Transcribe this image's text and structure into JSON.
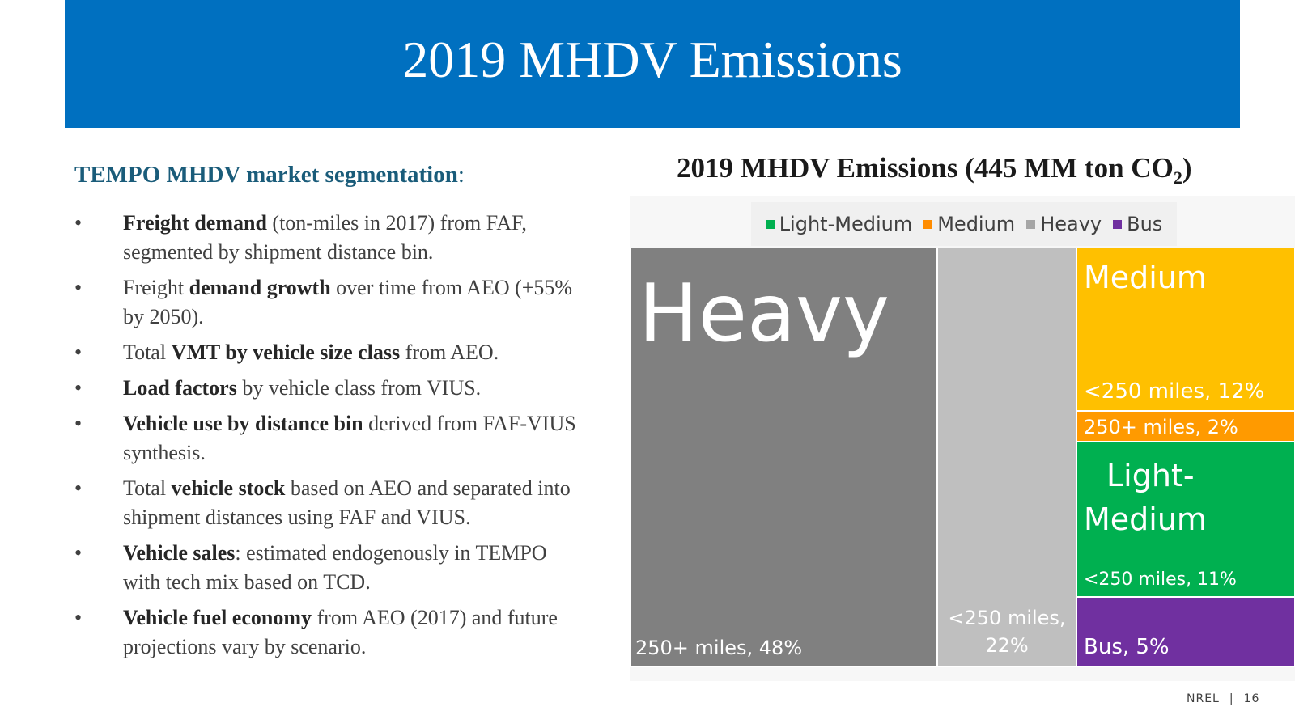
{
  "slide": {
    "title": "2019 MHDV Emissions",
    "subhead_bold": "TEMPO MHDV market segmentation",
    "subhead_rest": ":",
    "bullet_glyph": "•",
    "footer_org": "NREL",
    "footer_sep": "|",
    "page_number": "16"
  },
  "bullets": [
    {
      "b1": "Freight demand",
      "t1": " (ton-miles in 2017) from FAF, segmented by shipment distance bin.",
      "b2": "",
      "t2": ""
    },
    {
      "b1": "",
      "t1": "Freight ",
      "b2": "demand growth",
      "t2": " over time from AEO (+55% by 2050)."
    },
    {
      "b1": "",
      "t1": "Total ",
      "b2": "VMT by vehicle size class",
      "t2": " from AEO."
    },
    {
      "b1": "Load factors",
      "t1": " by vehicle class from VIUS.",
      "b2": "",
      "t2": ""
    },
    {
      "b1": "Vehicle use by distance bin",
      "t1": " derived from FAF-VIUS synthesis.",
      "b2": "",
      "t2": ""
    },
    {
      "b1": "",
      "t1": "Total ",
      "b2": "vehicle stock",
      "t2": " based on AEO and separated into shipment distances using FAF and VIUS."
    },
    {
      "b1": "Vehicle sales",
      "t1": ": estimated endogenously in TEMPO with tech mix based on TCD.",
      "b2": "",
      "t2": ""
    },
    {
      "b1": "Vehicle fuel economy",
      "t1": " from AEO (2017) and future projections vary by scenario.",
      "b2": "",
      "t2": ""
    }
  ],
  "chart_data": {
    "type": "treemap",
    "title_main": "2019 MHDV Emissions (445 MM ton CO",
    "title_sub": "2",
    "title_close": ")",
    "total": 445,
    "unit": "MM ton CO2",
    "legend": [
      {
        "name": "Light-Medium",
        "color": "#00b050"
      },
      {
        "name": "Medium",
        "color": "#ff8c00"
      },
      {
        "name": "Heavy",
        "color": "#a6a6a6"
      },
      {
        "name": "Bus",
        "color": "#7030a0"
      }
    ],
    "tiles": [
      {
        "id": "heavy-250plus",
        "group": "Heavy",
        "share": 48,
        "group_label": "Heavy",
        "label": "250+ miles, 48%",
        "label_lines": [],
        "color": "#808080"
      },
      {
        "id": "heavy-lt250",
        "group": "Heavy",
        "share": 22,
        "group_label": "",
        "label": "",
        "label_lines": [
          "<250 miles,",
          "22%"
        ],
        "color": "#bfbfbf"
      },
      {
        "id": "medium-lt250",
        "group": "Medium",
        "share": 12,
        "group_label": "Medium",
        "label": "<250 miles, 12%",
        "label_lines": [],
        "color": "#ffc000"
      },
      {
        "id": "medium-250plus",
        "group": "Medium",
        "share": 2,
        "group_label": "",
        "label": "250+ miles, 2%",
        "label_lines": [],
        "color": "#ff9a00"
      },
      {
        "id": "lightmedium-lt250",
        "group": "Light-Medium",
        "share": 11,
        "group_label": "",
        "group_label_lines": [
          "Light-",
          "Medium"
        ],
        "label": "<250 miles, 11%",
        "label_lines": [],
        "color": "#00b050"
      },
      {
        "id": "bus",
        "group": "Bus",
        "share": 5,
        "group_label": "",
        "label": "Bus, 5%",
        "label_lines": [],
        "color": "#7030a0"
      }
    ]
  }
}
